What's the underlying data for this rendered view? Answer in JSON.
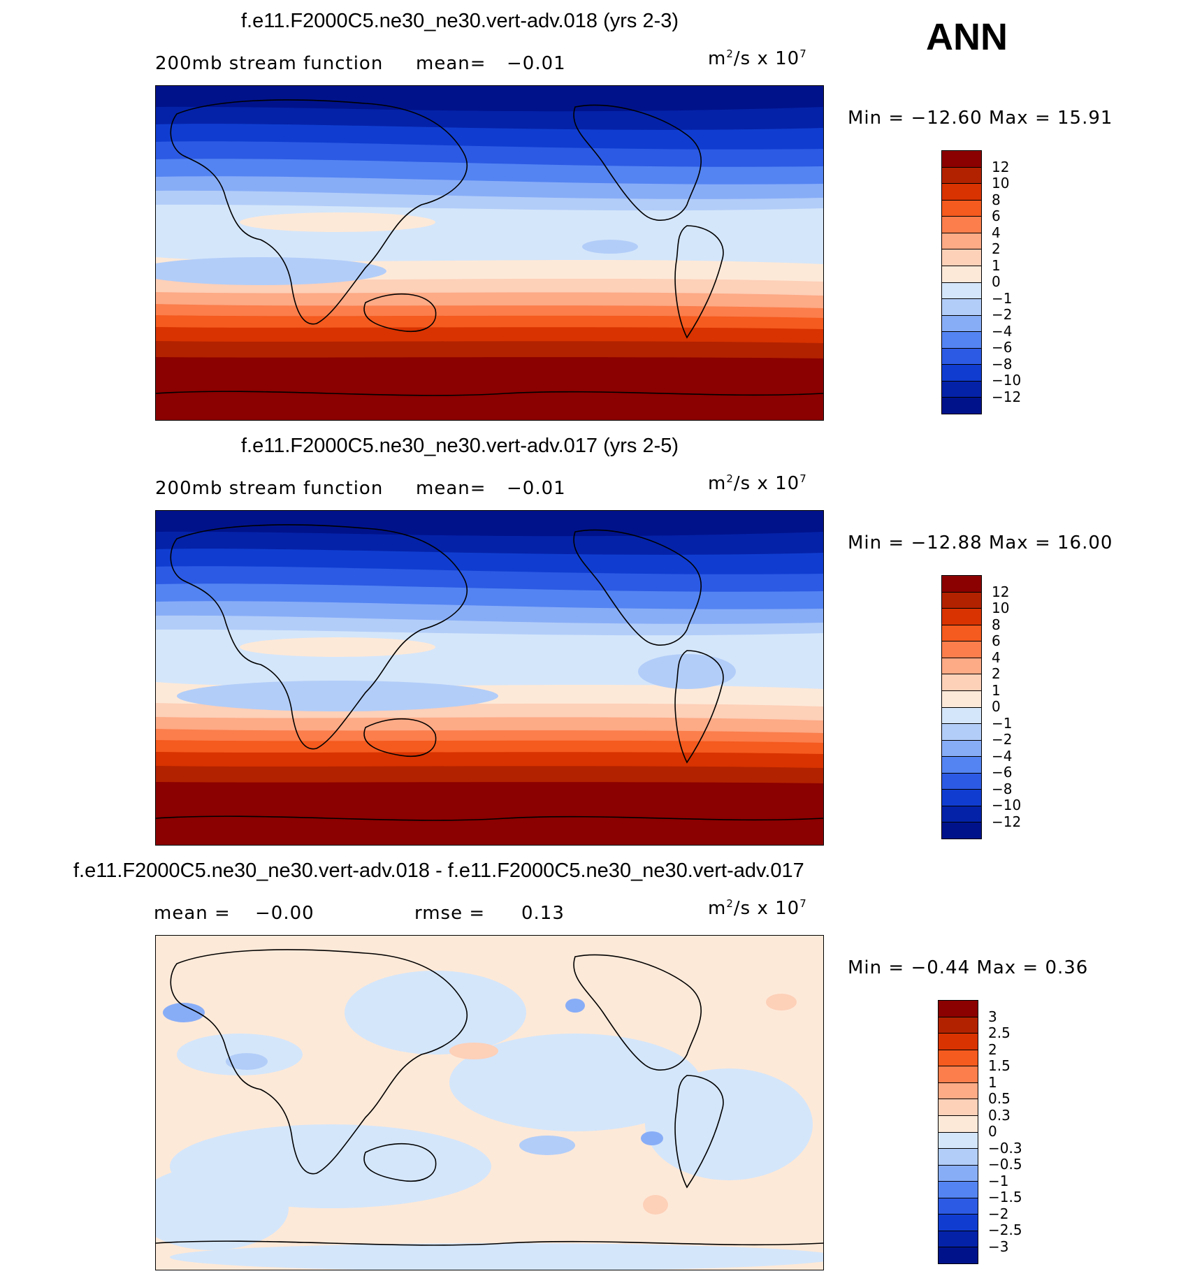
{
  "season": "ANN",
  "panels": [
    {
      "id": "p1",
      "title": "f.e11.F2000C5.ne30_ne30.vert-adv.018 (yrs 2-3)",
      "left_label": "200mb stream function",
      "mean_label": "mean=",
      "mean_value": "−0.01",
      "units_base": "m",
      "units_exp": "2",
      "units_mid": "/s x 10",
      "units_exp2": "7",
      "stats": "Min = −12.60 Max = 15.91",
      "levels": [
        "12",
        "10",
        "8",
        "6",
        "4",
        "2",
        "1",
        "0",
        "−1",
        "−2",
        "−4",
        "−6",
        "−8",
        "−10",
        "−12"
      ],
      "colors": [
        "#8b0000",
        "#b22200",
        "#d83300",
        "#f55a1e",
        "#fb7e4c",
        "#fdaa86",
        "#fdd0b8",
        "#fde9d8",
        "#d4e6fa",
        "#b2cdf8",
        "#88adf7",
        "#5484f2",
        "#2c5ae4",
        "#103dd0",
        "#0422a8",
        "#00128a"
      ]
    },
    {
      "id": "p2",
      "title": "f.e11.F2000C5.ne30_ne30.vert-adv.017 (yrs 2-5)",
      "left_label": "200mb stream function",
      "mean_label": "mean=",
      "mean_value": "−0.01",
      "units_base": "m",
      "units_exp": "2",
      "units_mid": "/s x 10",
      "units_exp2": "7",
      "stats": "Min = −12.88 Max = 16.00",
      "levels": [
        "12",
        "10",
        "8",
        "6",
        "4",
        "2",
        "1",
        "0",
        "−1",
        "−2",
        "−4",
        "−6",
        "−8",
        "−10",
        "−12"
      ],
      "colors": [
        "#8b0000",
        "#b22200",
        "#d83300",
        "#f55a1e",
        "#fb7e4c",
        "#fdaa86",
        "#fdd0b8",
        "#fde9d8",
        "#d4e6fa",
        "#b2cdf8",
        "#88adf7",
        "#5484f2",
        "#2c5ae4",
        "#103dd0",
        "#0422a8",
        "#00128a"
      ]
    },
    {
      "id": "p3",
      "title": "f.e11.F2000C5.ne30_ne30.vert-adv.018 - f.e11.F2000C5.ne30_ne30.vert-adv.017",
      "left_label": "mean =",
      "mean_label": "",
      "mean_value": "−0.00",
      "rmse_label": "rmse =",
      "rmse_value": "0.13",
      "units_base": "m",
      "units_exp": "2",
      "units_mid": "/s x 10",
      "units_exp2": "7",
      "stats": "Min = −0.44 Max = 0.36",
      "levels": [
        "3",
        "2.5",
        "2",
        "1.5",
        "1",
        "0.5",
        "0.3",
        "0",
        "−0.3",
        "−0.5",
        "−1",
        "−1.5",
        "−2",
        "−2.5",
        "−3"
      ],
      "colors": [
        "#8b0000",
        "#b22200",
        "#d83300",
        "#f55a1e",
        "#fb7e4c",
        "#fdaa86",
        "#fdd0b8",
        "#fde9d8",
        "#d4e6fa",
        "#b2cdf8",
        "#88adf7",
        "#5484f2",
        "#2c5ae4",
        "#103dd0",
        "#0422a8",
        "#00128a"
      ]
    }
  ]
}
